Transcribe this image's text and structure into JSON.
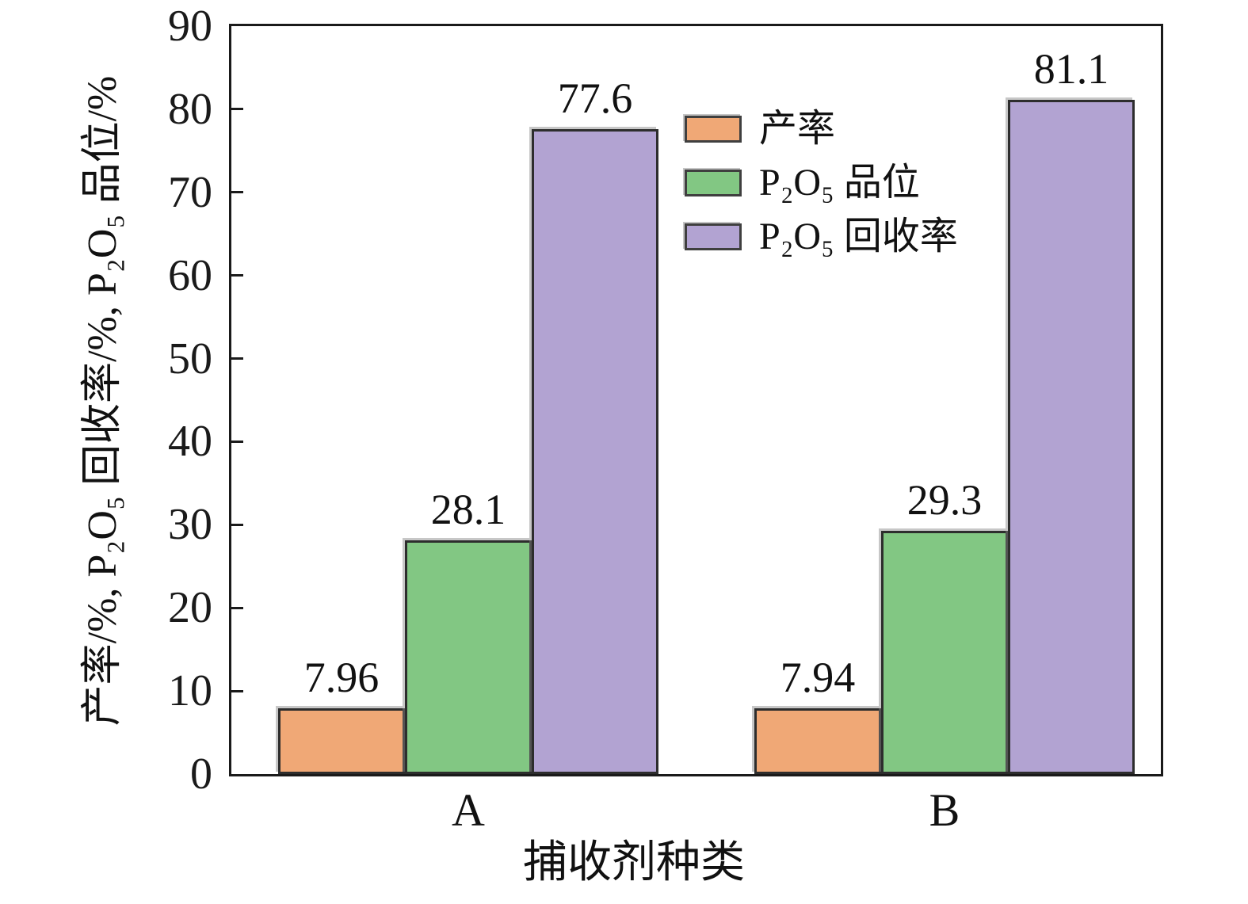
{
  "chart_data": {
    "type": "bar",
    "title": "",
    "categories": [
      "A",
      "B"
    ],
    "series": [
      {
        "name": "产率",
        "color": "#F0A876",
        "values": [
          7.96,
          7.94
        ],
        "labels": [
          "7.96",
          "7.94"
        ]
      },
      {
        "name": "P₂O₅ 品位",
        "color": "#82C783",
        "values": [
          28.1,
          29.3
        ],
        "labels": [
          "28.1",
          "29.3"
        ]
      },
      {
        "name": "P₂O₅ 回收率",
        "color": "#B2A3D2",
        "values": [
          77.6,
          81.1
        ],
        "labels": [
          "77.6",
          "81.1"
        ]
      }
    ],
    "xlabel": "捕收剂种类",
    "ylabel": "产率/%, P₂O₅ 回收率/%, P₂O₅ 品位/%",
    "ylim": [
      0,
      90
    ],
    "yticks": [
      0,
      10,
      20,
      30,
      40,
      50,
      60,
      70,
      80,
      90
    ],
    "grid": false,
    "legend_position": "inside-top-center",
    "axis_color": "#1a1a1a"
  }
}
